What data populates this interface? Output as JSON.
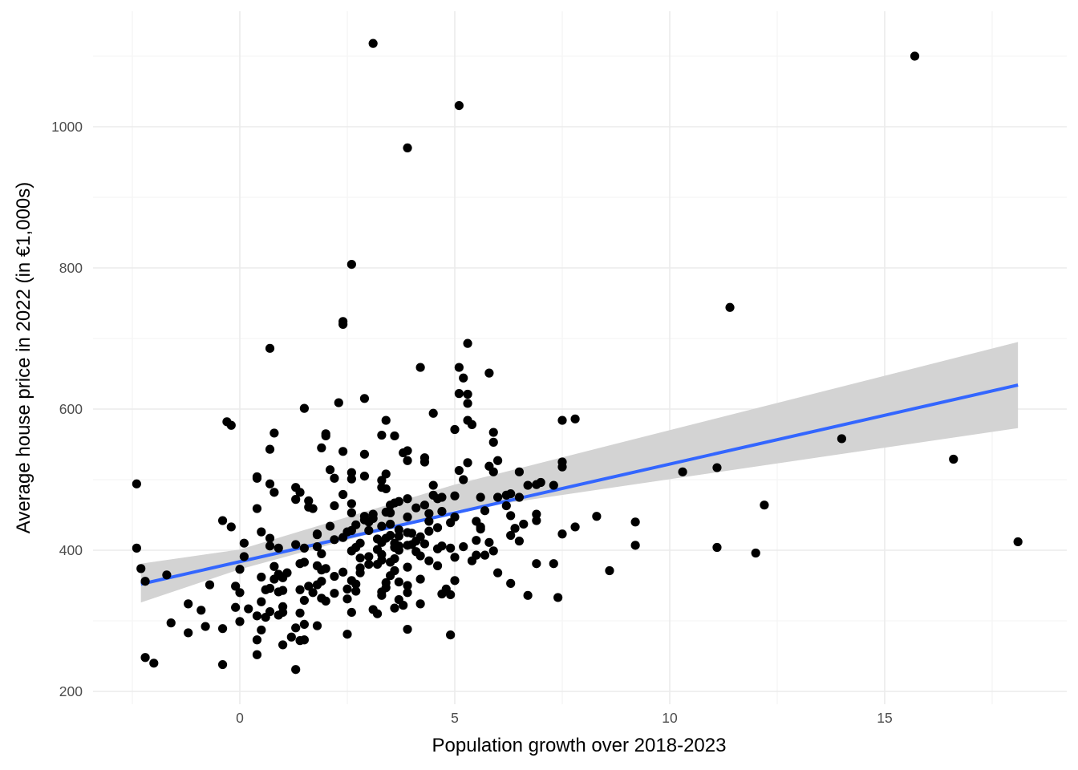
{
  "chart_data": {
    "type": "scatter",
    "title": "",
    "xlabel": "Population growth over 2018-2023",
    "ylabel": "Average house price in 2022 (in €1,000s)",
    "xlim": [
      -2.5,
      18.5
    ],
    "ylim": [
      188,
      1140
    ],
    "x_ticks": [
      0,
      5,
      10,
      15
    ],
    "x_tick_labels": [
      "0",
      "5",
      "10",
      "15"
    ],
    "x_minor": [
      -2.5,
      2.5,
      7.5,
      12.5,
      17.5
    ],
    "y_ticks": [
      200,
      400,
      600,
      800,
      1000
    ],
    "y_tick_labels": [
      "200",
      "400",
      "600",
      "800",
      "1000"
    ],
    "y_minor": [
      300,
      500,
      700,
      900,
      1100
    ],
    "grid": true,
    "legend": "none",
    "colors": {
      "points": "#000000",
      "fit_line": "#3366FF",
      "ci_band": "#D3D3D3",
      "grid_major": "#EBEBEB",
      "grid_minor": "#F3F3F3"
    },
    "fit": {
      "method": "linear",
      "x_range": [
        -2.3,
        18.1
      ],
      "y_start": 352,
      "y_end": 634,
      "ci_lower": [
        326,
        373,
        456,
        573
      ],
      "ci_upper": [
        381,
        401,
        493,
        695
      ],
      "ci_x": [
        -2.3,
        0,
        5,
        18.1
      ]
    },
    "points": [
      {
        "x": 3.1,
        "y": 1118
      },
      {
        "x": 15.7,
        "y": 1100
      },
      {
        "x": 5.1,
        "y": 1030
      },
      {
        "x": 3.9,
        "y": 970
      },
      {
        "x": 2.6,
        "y": 805
      },
      {
        "x": 11.4,
        "y": 744
      },
      {
        "x": 2.4,
        "y": 724
      },
      {
        "x": 2.4,
        "y": 720
      },
      {
        "x": 5.3,
        "y": 693
      },
      {
        "x": 0.7,
        "y": 686
      },
      {
        "x": 4.2,
        "y": 659
      },
      {
        "x": 5.1,
        "y": 659
      },
      {
        "x": 5.8,
        "y": 651
      },
      {
        "x": 5.2,
        "y": 644
      },
      {
        "x": 5.1,
        "y": 622
      },
      {
        "x": 5.3,
        "y": 621
      },
      {
        "x": 2.9,
        "y": 615
      },
      {
        "x": 2.3,
        "y": 609
      },
      {
        "x": 5.3,
        "y": 608
      },
      {
        "x": 1.5,
        "y": 601
      },
      {
        "x": 4.5,
        "y": 594
      },
      {
        "x": 7.8,
        "y": 586
      },
      {
        "x": -0.3,
        "y": 582
      },
      {
        "x": 3.4,
        "y": 584
      },
      {
        "x": 7.5,
        "y": 584
      },
      {
        "x": 5.3,
        "y": 584
      },
      {
        "x": 5.4,
        "y": 578
      },
      {
        "x": -0.2,
        "y": 577
      },
      {
        "x": 5.0,
        "y": 571
      },
      {
        "x": 0.8,
        "y": 566
      },
      {
        "x": 5.9,
        "y": 567
      },
      {
        "x": 2.0,
        "y": 565
      },
      {
        "x": 3.3,
        "y": 563
      },
      {
        "x": 2.0,
        "y": 562
      },
      {
        "x": 3.6,
        "y": 562
      },
      {
        "x": 5.9,
        "y": 553
      },
      {
        "x": 14.0,
        "y": 558
      },
      {
        "x": 1.9,
        "y": 545
      },
      {
        "x": 0.7,
        "y": 543
      },
      {
        "x": 3.9,
        "y": 541
      },
      {
        "x": 3.8,
        "y": 538
      },
      {
        "x": 2.4,
        "y": 540
      },
      {
        "x": 2.9,
        "y": 536
      },
      {
        "x": 4.3,
        "y": 531
      },
      {
        "x": 16.6,
        "y": 529
      },
      {
        "x": 3.9,
        "y": 527
      },
      {
        "x": 6.0,
        "y": 527
      },
      {
        "x": 7.5,
        "y": 525
      },
      {
        "x": 4.3,
        "y": 525
      },
      {
        "x": 5.3,
        "y": 524
      },
      {
        "x": 5.8,
        "y": 519
      },
      {
        "x": 11.1,
        "y": 517
      },
      {
        "x": 7.5,
        "y": 518
      },
      {
        "x": 2.1,
        "y": 514
      },
      {
        "x": 5.1,
        "y": 513
      },
      {
        "x": 5.9,
        "y": 511
      },
      {
        "x": 6.5,
        "y": 511
      },
      {
        "x": 10.3,
        "y": 511
      },
      {
        "x": 2.6,
        "y": 510
      },
      {
        "x": 3.4,
        "y": 508
      },
      {
        "x": 2.9,
        "y": 505
      },
      {
        "x": 0.4,
        "y": 504
      },
      {
        "x": 0.4,
        "y": 502
      },
      {
        "x": 2.2,
        "y": 502
      },
      {
        "x": 2.6,
        "y": 501
      },
      {
        "x": 5.2,
        "y": 500
      },
      {
        "x": 3.3,
        "y": 499
      },
      {
        "x": 7.0,
        "y": 496
      },
      {
        "x": 0.7,
        "y": 494
      },
      {
        "x": 6.9,
        "y": 493
      },
      {
        "x": 6.7,
        "y": 492
      },
      {
        "x": 4.5,
        "y": 492
      },
      {
        "x": 7.3,
        "y": 492
      },
      {
        "x": -2.4,
        "y": 494
      },
      {
        "x": 3.3,
        "y": 489
      },
      {
        "x": 3.4,
        "y": 487
      },
      {
        "x": 1.3,
        "y": 489
      },
      {
        "x": 1.4,
        "y": 482
      },
      {
        "x": 0.8,
        "y": 482
      },
      {
        "x": 2.4,
        "y": 479
      },
      {
        "x": 6.3,
        "y": 480
      },
      {
        "x": 4.5,
        "y": 478
      },
      {
        "x": 5.0,
        "y": 477
      },
      {
        "x": 6.2,
        "y": 478
      },
      {
        "x": 6.0,
        "y": 475
      },
      {
        "x": 5.6,
        "y": 475
      },
      {
        "x": 4.7,
        "y": 475
      },
      {
        "x": 3.9,
        "y": 473
      },
      {
        "x": 4.6,
        "y": 473
      },
      {
        "x": 1.3,
        "y": 472
      },
      {
        "x": 6.5,
        "y": 475
      },
      {
        "x": 3.7,
        "y": 469
      },
      {
        "x": 1.6,
        "y": 470
      },
      {
        "x": 3.6,
        "y": 467
      },
      {
        "x": 2.6,
        "y": 466
      },
      {
        "x": 12.2,
        "y": 464
      },
      {
        "x": 3.5,
        "y": 464
      },
      {
        "x": 4.3,
        "y": 464
      },
      {
        "x": 2.2,
        "y": 463
      },
      {
        "x": 6.2,
        "y": 463
      },
      {
        "x": 1.6,
        "y": 461
      },
      {
        "x": 4.1,
        "y": 460
      },
      {
        "x": 0.4,
        "y": 459
      },
      {
        "x": 1.7,
        "y": 459
      },
      {
        "x": 5.7,
        "y": 456
      },
      {
        "x": 3.4,
        "y": 454
      },
      {
        "x": 2.6,
        "y": 453
      },
      {
        "x": 4.7,
        "y": 455
      },
      {
        "x": 3.5,
        "y": 453
      },
      {
        "x": 4.4,
        "y": 452
      },
      {
        "x": 3.1,
        "y": 451
      },
      {
        "x": 6.9,
        "y": 451
      },
      {
        "x": 8.3,
        "y": 448
      },
      {
        "x": 2.9,
        "y": 448
      },
      {
        "x": 6.3,
        "y": 449
      },
      {
        "x": 3.9,
        "y": 447
      },
      {
        "x": 5.0,
        "y": 447
      },
      {
        "x": 3.1,
        "y": 445
      },
      {
        "x": 2.9,
        "y": 443
      },
      {
        "x": -0.4,
        "y": 442
      },
      {
        "x": 6.9,
        "y": 442
      },
      {
        "x": 5.5,
        "y": 441
      },
      {
        "x": 9.2,
        "y": 440
      },
      {
        "x": 4.4,
        "y": 441
      },
      {
        "x": 3.0,
        "y": 440
      },
      {
        "x": 4.9,
        "y": 439
      },
      {
        "x": 3.5,
        "y": 437
      },
      {
        "x": 6.6,
        "y": 437
      },
      {
        "x": 2.7,
        "y": 436
      },
      {
        "x": 3.3,
        "y": 434
      },
      {
        "x": 2.1,
        "y": 434
      },
      {
        "x": -0.2,
        "y": 433
      },
      {
        "x": 5.6,
        "y": 433
      },
      {
        "x": 7.8,
        "y": 433
      },
      {
        "x": 4.6,
        "y": 432
      },
      {
        "x": 6.4,
        "y": 431
      },
      {
        "x": 5.6,
        "y": 430
      },
      {
        "x": 3.7,
        "y": 429
      },
      {
        "x": 2.6,
        "y": 428
      },
      {
        "x": 3.0,
        "y": 428
      },
      {
        "x": 4.4,
        "y": 427
      },
      {
        "x": 2.5,
        "y": 426
      },
      {
        "x": 3.9,
        "y": 425
      },
      {
        "x": 0.5,
        "y": 426
      },
      {
        "x": 4.0,
        "y": 424
      },
      {
        "x": 1.8,
        "y": 423
      },
      {
        "x": 7.5,
        "y": 423
      },
      {
        "x": 1.8,
        "y": 422
      },
      {
        "x": 3.5,
        "y": 421
      },
      {
        "x": 3.7,
        "y": 420
      },
      {
        "x": 6.3,
        "y": 421
      },
      {
        "x": 4.2,
        "y": 419
      },
      {
        "x": 2.4,
        "y": 418
      },
      {
        "x": 3.4,
        "y": 417
      },
      {
        "x": 0.7,
        "y": 417
      },
      {
        "x": 3.2,
        "y": 416
      },
      {
        "x": 2.2,
        "y": 415
      },
      {
        "x": 5.5,
        "y": 414
      },
      {
        "x": 4.1,
        "y": 413
      },
      {
        "x": 6.5,
        "y": 413
      },
      {
        "x": 3.3,
        "y": 411
      },
      {
        "x": 5.8,
        "y": 411
      },
      {
        "x": 18.1,
        "y": 412
      },
      {
        "x": 3.6,
        "y": 410
      },
      {
        "x": 2.8,
        "y": 410
      },
      {
        "x": 4.3,
        "y": 409
      },
      {
        "x": 1.3,
        "y": 408
      },
      {
        "x": 0.1,
        "y": 410
      },
      {
        "x": 4.0,
        "y": 408
      },
      {
        "x": 3.9,
        "y": 407
      },
      {
        "x": 3.7,
        "y": 406
      },
      {
        "x": 9.2,
        "y": 407
      },
      {
        "x": 4.7,
        "y": 406
      },
      {
        "x": 1.8,
        "y": 405
      },
      {
        "x": 0.7,
        "y": 406
      },
      {
        "x": 5.2,
        "y": 405
      },
      {
        "x": 3.6,
        "y": 404
      },
      {
        "x": 2.7,
        "y": 404
      },
      {
        "x": 11.1,
        "y": 404
      },
      {
        "x": 1.5,
        "y": 403
      },
      {
        "x": 4.9,
        "y": 403
      },
      {
        "x": 0.9,
        "y": 403
      },
      {
        "x": -2.4,
        "y": 403
      },
      {
        "x": 4.6,
        "y": 402
      },
      {
        "x": 3.2,
        "y": 401
      },
      {
        "x": 3.7,
        "y": 400
      },
      {
        "x": 2.6,
        "y": 399
      },
      {
        "x": 5.9,
        "y": 399
      },
      {
        "x": 4.1,
        "y": 398
      },
      {
        "x": 12.0,
        "y": 396
      },
      {
        "x": 1.9,
        "y": 395
      },
      {
        "x": 3.3,
        "y": 394
      },
      {
        "x": 5.5,
        "y": 393
      },
      {
        "x": 5.7,
        "y": 393
      },
      {
        "x": 4.2,
        "y": 392
      },
      {
        "x": 3.0,
        "y": 391
      },
      {
        "x": 5.0,
        "y": 390
      },
      {
        "x": 2.8,
        "y": 389
      },
      {
        "x": 3.6,
        "y": 388
      },
      {
        "x": 0.1,
        "y": 391
      },
      {
        "x": 3.3,
        "y": 386
      },
      {
        "x": 4.4,
        "y": 385
      },
      {
        "x": 5.4,
        "y": 385
      },
      {
        "x": 3.5,
        "y": 383
      },
      {
        "x": 1.5,
        "y": 383
      },
      {
        "x": 1.4,
        "y": 381
      },
      {
        "x": 3.2,
        "y": 380
      },
      {
        "x": 6.9,
        "y": 381
      },
      {
        "x": 7.3,
        "y": 381
      },
      {
        "x": 3.0,
        "y": 380
      },
      {
        "x": 4.6,
        "y": 378
      },
      {
        "x": 1.8,
        "y": 378
      },
      {
        "x": 0.8,
        "y": 377
      },
      {
        "x": 3.9,
        "y": 376
      },
      {
        "x": 2.8,
        "y": 375
      },
      {
        "x": 2.0,
        "y": 374
      },
      {
        "x": -2.3,
        "y": 374
      },
      {
        "x": 0.0,
        "y": 373
      },
      {
        "x": 1.9,
        "y": 372
      },
      {
        "x": 3.6,
        "y": 371
      },
      {
        "x": 8.6,
        "y": 371
      },
      {
        "x": 6.0,
        "y": 368
      },
      {
        "x": 2.4,
        "y": 369
      },
      {
        "x": 1.1,
        "y": 368
      },
      {
        "x": 2.8,
        "y": 368
      },
      {
        "x": 0.9,
        "y": 366
      },
      {
        "x": -1.7,
        "y": 365
      },
      {
        "x": 3.5,
        "y": 364
      },
      {
        "x": 2.2,
        "y": 363
      },
      {
        "x": 0.5,
        "y": 362
      },
      {
        "x": 1.0,
        "y": 361
      },
      {
        "x": 0.8,
        "y": 359
      },
      {
        "x": 4.2,
        "y": 359
      },
      {
        "x": 5.0,
        "y": 357
      },
      {
        "x": 2.6,
        "y": 357
      },
      {
        "x": 1.9,
        "y": 356
      },
      {
        "x": -2.2,
        "y": 356
      },
      {
        "x": 3.7,
        "y": 355
      },
      {
        "x": 3.4,
        "y": 354
      },
      {
        "x": 6.3,
        "y": 353
      },
      {
        "x": 2.7,
        "y": 352
      },
      {
        "x": -0.7,
        "y": 351
      },
      {
        "x": 1.8,
        "y": 351
      },
      {
        "x": 3.9,
        "y": 350
      },
      {
        "x": -0.1,
        "y": 349
      },
      {
        "x": 1.6,
        "y": 349
      },
      {
        "x": 3.4,
        "y": 347
      },
      {
        "x": 0.7,
        "y": 346
      },
      {
        "x": 2.5,
        "y": 345
      },
      {
        "x": 4.8,
        "y": 345
      },
      {
        "x": 1.4,
        "y": 344
      },
      {
        "x": 0.6,
        "y": 344
      },
      {
        "x": 1.0,
        "y": 343
      },
      {
        "x": 2.7,
        "y": 342
      },
      {
        "x": 0.9,
        "y": 341
      },
      {
        "x": 3.3,
        "y": 341
      },
      {
        "x": 0.0,
        "y": 340
      },
      {
        "x": 3.9,
        "y": 340
      },
      {
        "x": 1.7,
        "y": 340
      },
      {
        "x": 2.2,
        "y": 339
      },
      {
        "x": 4.7,
        "y": 338
      },
      {
        "x": 4.9,
        "y": 337
      },
      {
        "x": 3.3,
        "y": 336
      },
      {
        "x": 6.7,
        "y": 336
      },
      {
        "x": 7.4,
        "y": 333
      },
      {
        "x": 1.9,
        "y": 332
      },
      {
        "x": 2.5,
        "y": 331
      },
      {
        "x": 3.7,
        "y": 330
      },
      {
        "x": 1.5,
        "y": 329
      },
      {
        "x": 2.0,
        "y": 328
      },
      {
        "x": 0.5,
        "y": 327
      },
      {
        "x": -1.2,
        "y": 324
      },
      {
        "x": 4.2,
        "y": 324
      },
      {
        "x": 3.8,
        "y": 322
      },
      {
        "x": 1.0,
        "y": 320
      },
      {
        "x": -0.1,
        "y": 319
      },
      {
        "x": 3.6,
        "y": 318
      },
      {
        "x": 0.2,
        "y": 317
      },
      {
        "x": 3.1,
        "y": 316
      },
      {
        "x": -0.9,
        "y": 315
      },
      {
        "x": 0.7,
        "y": 313
      },
      {
        "x": 1.0,
        "y": 312
      },
      {
        "x": 2.6,
        "y": 312
      },
      {
        "x": 1.4,
        "y": 311
      },
      {
        "x": 3.2,
        "y": 310
      },
      {
        "x": 0.9,
        "y": 308
      },
      {
        "x": 0.4,
        "y": 307
      },
      {
        "x": 0.6,
        "y": 305
      },
      {
        "x": 0.0,
        "y": 299
      },
      {
        "x": -1.6,
        "y": 297
      },
      {
        "x": 1.5,
        "y": 295
      },
      {
        "x": 1.8,
        "y": 293
      },
      {
        "x": -0.8,
        "y": 292
      },
      {
        "x": 1.3,
        "y": 290
      },
      {
        "x": -0.4,
        "y": 289
      },
      {
        "x": 3.9,
        "y": 288
      },
      {
        "x": 0.5,
        "y": 287
      },
      {
        "x": -1.2,
        "y": 283
      },
      {
        "x": 2.5,
        "y": 281
      },
      {
        "x": 4.9,
        "y": 280
      },
      {
        "x": 1.2,
        "y": 277
      },
      {
        "x": 0.4,
        "y": 273
      },
      {
        "x": 1.5,
        "y": 273
      },
      {
        "x": 1.4,
        "y": 272
      },
      {
        "x": 1.0,
        "y": 266
      },
      {
        "x": 0.4,
        "y": 252
      },
      {
        "x": -2.2,
        "y": 248
      },
      {
        "x": -2.0,
        "y": 240
      },
      {
        "x": -0.4,
        "y": 238
      },
      {
        "x": 1.3,
        "y": 231
      }
    ]
  }
}
